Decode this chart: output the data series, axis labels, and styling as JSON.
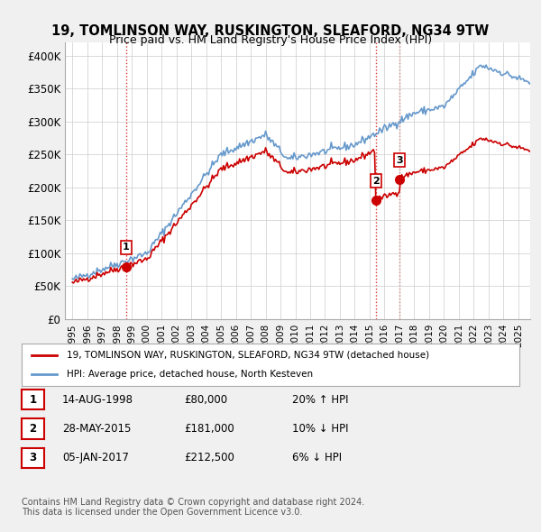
{
  "title": "19, TOMLINSON WAY, RUSKINGTON, SLEAFORD, NG34 9TW",
  "subtitle": "Price paid vs. HM Land Registry's House Price Index (HPI)",
  "sale_dates": [
    "1998-08-14",
    "2015-05-28",
    "2017-01-05"
  ],
  "sale_prices": [
    80000,
    181000,
    212500
  ],
  "sale_labels": [
    "1",
    "2",
    "3"
  ],
  "legend_red": "19, TOMLINSON WAY, RUSKINGTON, SLEAFORD, NG34 9TW (detached house)",
  "legend_blue": "HPI: Average price, detached house, North Kesteven",
  "table_data": [
    [
      "1",
      "14-AUG-1998",
      "£80,000",
      "20% ↑ HPI"
    ],
    [
      "2",
      "28-MAY-2015",
      "£181,000",
      "10% ↓ HPI"
    ],
    [
      "3",
      "05-JAN-2017",
      "£212,500",
      "6% ↓ HPI"
    ]
  ],
  "footer": "Contains HM Land Registry data © Crown copyright and database right 2024.\nThis data is licensed under the Open Government Licence v3.0.",
  "ylabel": "",
  "ylim": [
    0,
    420000
  ],
  "yticks": [
    0,
    50000,
    100000,
    150000,
    200000,
    250000,
    300000,
    350000,
    400000
  ],
  "ytick_labels": [
    "£0",
    "£50K",
    "£100K",
    "£150K",
    "£200K",
    "£250K",
    "£300K",
    "£350K",
    "£400K"
  ],
  "color_red": "#cc0000",
  "color_blue": "#6699cc",
  "color_dashed_red": "#cc0000",
  "bg_color": "#f0f0f0",
  "plot_bg": "#ffffff"
}
